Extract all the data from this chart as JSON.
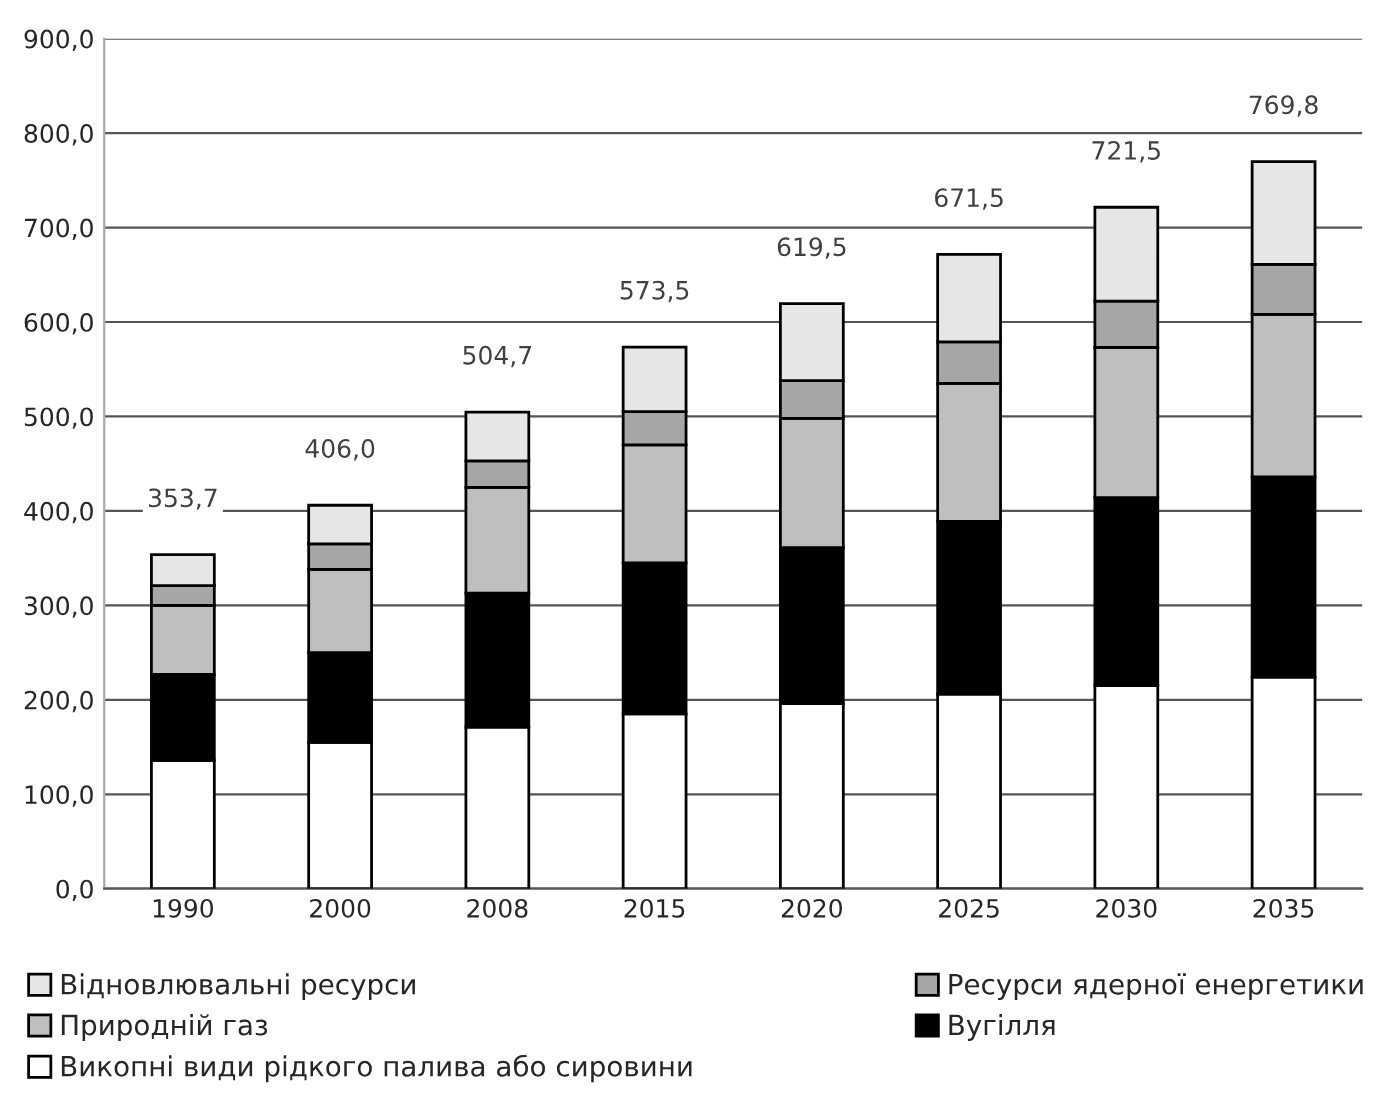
{
  "chart_data": {
    "type": "bar",
    "stacked": true,
    "categories": [
      "1990",
      "2000",
      "2008",
      "2015",
      "2020",
      "2025",
      "2030",
      "2035"
    ],
    "series": [
      {
        "name": "Викопні види рідкого палива або сировини",
        "color": "#ffffff",
        "values": [
          136,
          155,
          171,
          185,
          196,
          206,
          215,
          224
        ]
      },
      {
        "name": "Вугілля",
        "color": "#000000",
        "values": [
          91,
          95,
          142,
          160,
          165,
          183,
          199,
          212
        ]
      },
      {
        "name": "Природній газ",
        "color": "#bfbfbf",
        "values": [
          73,
          88,
          112,
          125,
          137,
          146,
          159,
          172
        ]
      },
      {
        "name": "Ресурси ядерної енергетики",
        "color": "#a6a6a6",
        "values": [
          21,
          27,
          28,
          35,
          40,
          44,
          49,
          53
        ]
      },
      {
        "name": "Відновлювальні ресурси",
        "color": "#e6e6e6",
        "values": [
          32.7,
          41,
          51.7,
          68.5,
          81.5,
          92.5,
          99.5,
          108.8
        ]
      }
    ],
    "totals": [
      "353,7",
      "406,0",
      "504,7",
      "573,5",
      "619,5",
      "671,5",
      "721,5",
      "769,8"
    ],
    "ylim": [
      0,
      900
    ],
    "yticks": [
      {
        "value": 0,
        "label": "0,0"
      },
      {
        "value": 100,
        "label": "100,0"
      },
      {
        "value": 200,
        "label": "200,0"
      },
      {
        "value": 300,
        "label": "300,0"
      },
      {
        "value": 400,
        "label": "400,0"
      },
      {
        "value": 500,
        "label": "500,0"
      },
      {
        "value": 600,
        "label": "600,0"
      },
      {
        "value": 700,
        "label": "700,0"
      },
      {
        "value": 800,
        "label": "800,0"
      },
      {
        "value": 900,
        "label": "900,0"
      }
    ],
    "grid": "y",
    "legend": "bottom"
  }
}
